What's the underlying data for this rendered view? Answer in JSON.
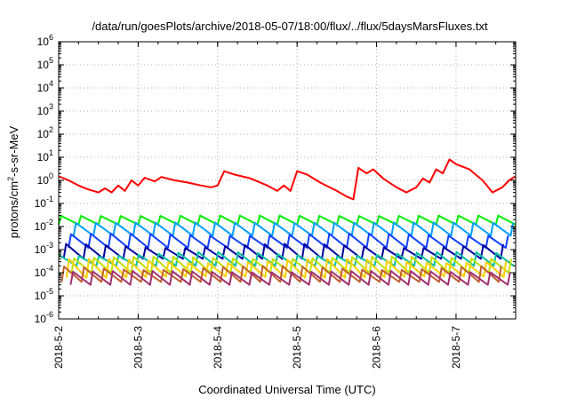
{
  "chart_data": {
    "type": "line",
    "title": "/data/run/goesPlots/archive/2018-05-07/18:00/flux/../flux/5daysMarsFluxes.txt",
    "xlabel": "Coordinated Universal Time (UTC)",
    "ylabel": {
      "prefix": "protons/cm",
      "sup": "2",
      "suffix": "-s-sr-MeV"
    },
    "yscale": "log",
    "ylim": [
      1e-06,
      1000000.0
    ],
    "xlim": [
      "2018-05-02 00:00",
      "2018-05-07 18:00"
    ],
    "grid": true,
    "x_ticks": [
      "2018-5-2",
      "2018-5-3",
      "2018-5-4",
      "2018-5-5",
      "2018-5-6",
      "2018-5-7"
    ],
    "y_ticks": [
      {
        "base": "10",
        "exp": "-6"
      },
      {
        "base": "10",
        "exp": "-5"
      },
      {
        "base": "10",
        "exp": "-4"
      },
      {
        "base": "10",
        "exp": "-3"
      },
      {
        "base": "10",
        "exp": "-2"
      },
      {
        "base": "10",
        "exp": "-1"
      },
      {
        "base": "10",
        "exp": "0"
      },
      {
        "base": "10",
        "exp": "1"
      },
      {
        "base": "10",
        "exp": "2"
      },
      {
        "base": "10",
        "exp": "3"
      },
      {
        "base": "10",
        "exp": "4"
      },
      {
        "base": "10",
        "exp": "5"
      },
      {
        "base": "10",
        "exp": "6"
      }
    ],
    "series": [
      {
        "color": "#ff0000",
        "values": [
          [
            "2018-05-02 00:00",
            1.5
          ],
          [
            "2018-05-02 03:00",
            1.0
          ],
          [
            "2018-05-02 06:00",
            0.6
          ],
          [
            "2018-05-02 09:00",
            0.4
          ],
          [
            "2018-05-02 12:00",
            0.3
          ],
          [
            "2018-05-02 14:00",
            0.45
          ],
          [
            "2018-05-02 16:00",
            0.3
          ],
          [
            "2018-05-02 18:00",
            0.6
          ],
          [
            "2018-05-02 20:00",
            0.35
          ],
          [
            "2018-05-02 22:00",
            1.0
          ],
          [
            "2018-05-03 00:00",
            0.6
          ],
          [
            "2018-05-03 02:00",
            1.3
          ],
          [
            "2018-05-03 05:00",
            0.9
          ],
          [
            "2018-05-03 07:00",
            1.4
          ],
          [
            "2018-05-03 11:00",
            1.0
          ],
          [
            "2018-05-03 15:00",
            0.8
          ],
          [
            "2018-05-03 19:00",
            0.6
          ],
          [
            "2018-05-03 22:00",
            0.5
          ],
          [
            "2018-05-04 00:00",
            0.6
          ],
          [
            "2018-05-04 02:00",
            2.5
          ],
          [
            "2018-05-04 05:00",
            1.8
          ],
          [
            "2018-05-04 10:00",
            1.2
          ],
          [
            "2018-05-04 15:00",
            0.6
          ],
          [
            "2018-05-04 18:00",
            0.35
          ],
          [
            "2018-05-04 20:00",
            0.6
          ],
          [
            "2018-05-04 22:00",
            0.35
          ],
          [
            "2018-05-05 00:00",
            2.5
          ],
          [
            "2018-05-05 03:00",
            1.8
          ],
          [
            "2018-05-05 07:00",
            0.8
          ],
          [
            "2018-05-05 12:00",
            0.35
          ],
          [
            "2018-05-05 15:00",
            0.2
          ],
          [
            "2018-05-05 17:00",
            0.15
          ],
          [
            "2018-05-05 18:30",
            3.5
          ],
          [
            "2018-05-05 21:00",
            2.0
          ],
          [
            "2018-05-05 23:00",
            3.0
          ],
          [
            "2018-05-06 02:00",
            1.2
          ],
          [
            "2018-05-06 06:00",
            0.5
          ],
          [
            "2018-05-06 09:00",
            0.3
          ],
          [
            "2018-05-06 12:00",
            0.5
          ],
          [
            "2018-05-06 14:00",
            1.2
          ],
          [
            "2018-05-06 16:00",
            0.8
          ],
          [
            "2018-05-06 18:00",
            3.0
          ],
          [
            "2018-05-06 20:00",
            2.0
          ],
          [
            "2018-05-06 22:00",
            8.0
          ],
          [
            "2018-05-07 00:00",
            5.0
          ],
          [
            "2018-05-07 04:00",
            3.0
          ],
          [
            "2018-05-07 08:00",
            1.0
          ],
          [
            "2018-05-07 11:00",
            0.3
          ],
          [
            "2018-05-07 14:00",
            0.5
          ],
          [
            "2018-05-07 16:00",
            1.0
          ],
          [
            "2018-05-07 18:00",
            1.5
          ]
        ]
      },
      {
        "color": "#00ee00",
        "values": [
          [
            "sawtooth",
            0.012,
            0.03,
            0.012,
            0.022,
            0.0
          ]
        ]
      },
      {
        "color": "#00a0ff",
        "values": [
          [
            "sawtooth",
            0.004,
            0.015,
            0.004,
            0.011,
            0.25
          ]
        ]
      },
      {
        "color": "#1040ff",
        "values": [
          [
            "sawtooth",
            0.0012,
            0.005,
            0.0012,
            0.003,
            0.5
          ]
        ]
      },
      {
        "color": "#0000a0",
        "values": [
          [
            "sawtooth",
            0.0004,
            0.0018,
            0.0004,
            0.0009,
            0.75
          ]
        ]
      },
      {
        "color": "#00c0a0",
        "values": [
          [
            "sawtooth",
            0.0002,
            0.0008,
            0.0002,
            0.0004,
            0.1
          ]
        ]
      },
      {
        "color": "#c0e000",
        "values": [
          [
            "sawtooth",
            0.0001,
            0.0005,
            0.0001,
            0.0003,
            0.35
          ]
        ]
      },
      {
        "color": "#ffd000",
        "values": [
          [
            "sawtooth",
            6e-05,
            0.0004,
            7e-05,
            0.0002,
            0.6
          ]
        ]
      },
      {
        "color": "#c06030",
        "values": [
          [
            "sawtooth",
            4e-05,
            0.0002,
            4e-05,
            0.0001,
            0.85
          ]
        ]
      },
      {
        "color": "#a03070",
        "values": [
          [
            "sawtooth",
            3e-05,
            0.00012,
            3e-05,
            8e-05,
            0.4
          ]
        ]
      }
    ]
  }
}
